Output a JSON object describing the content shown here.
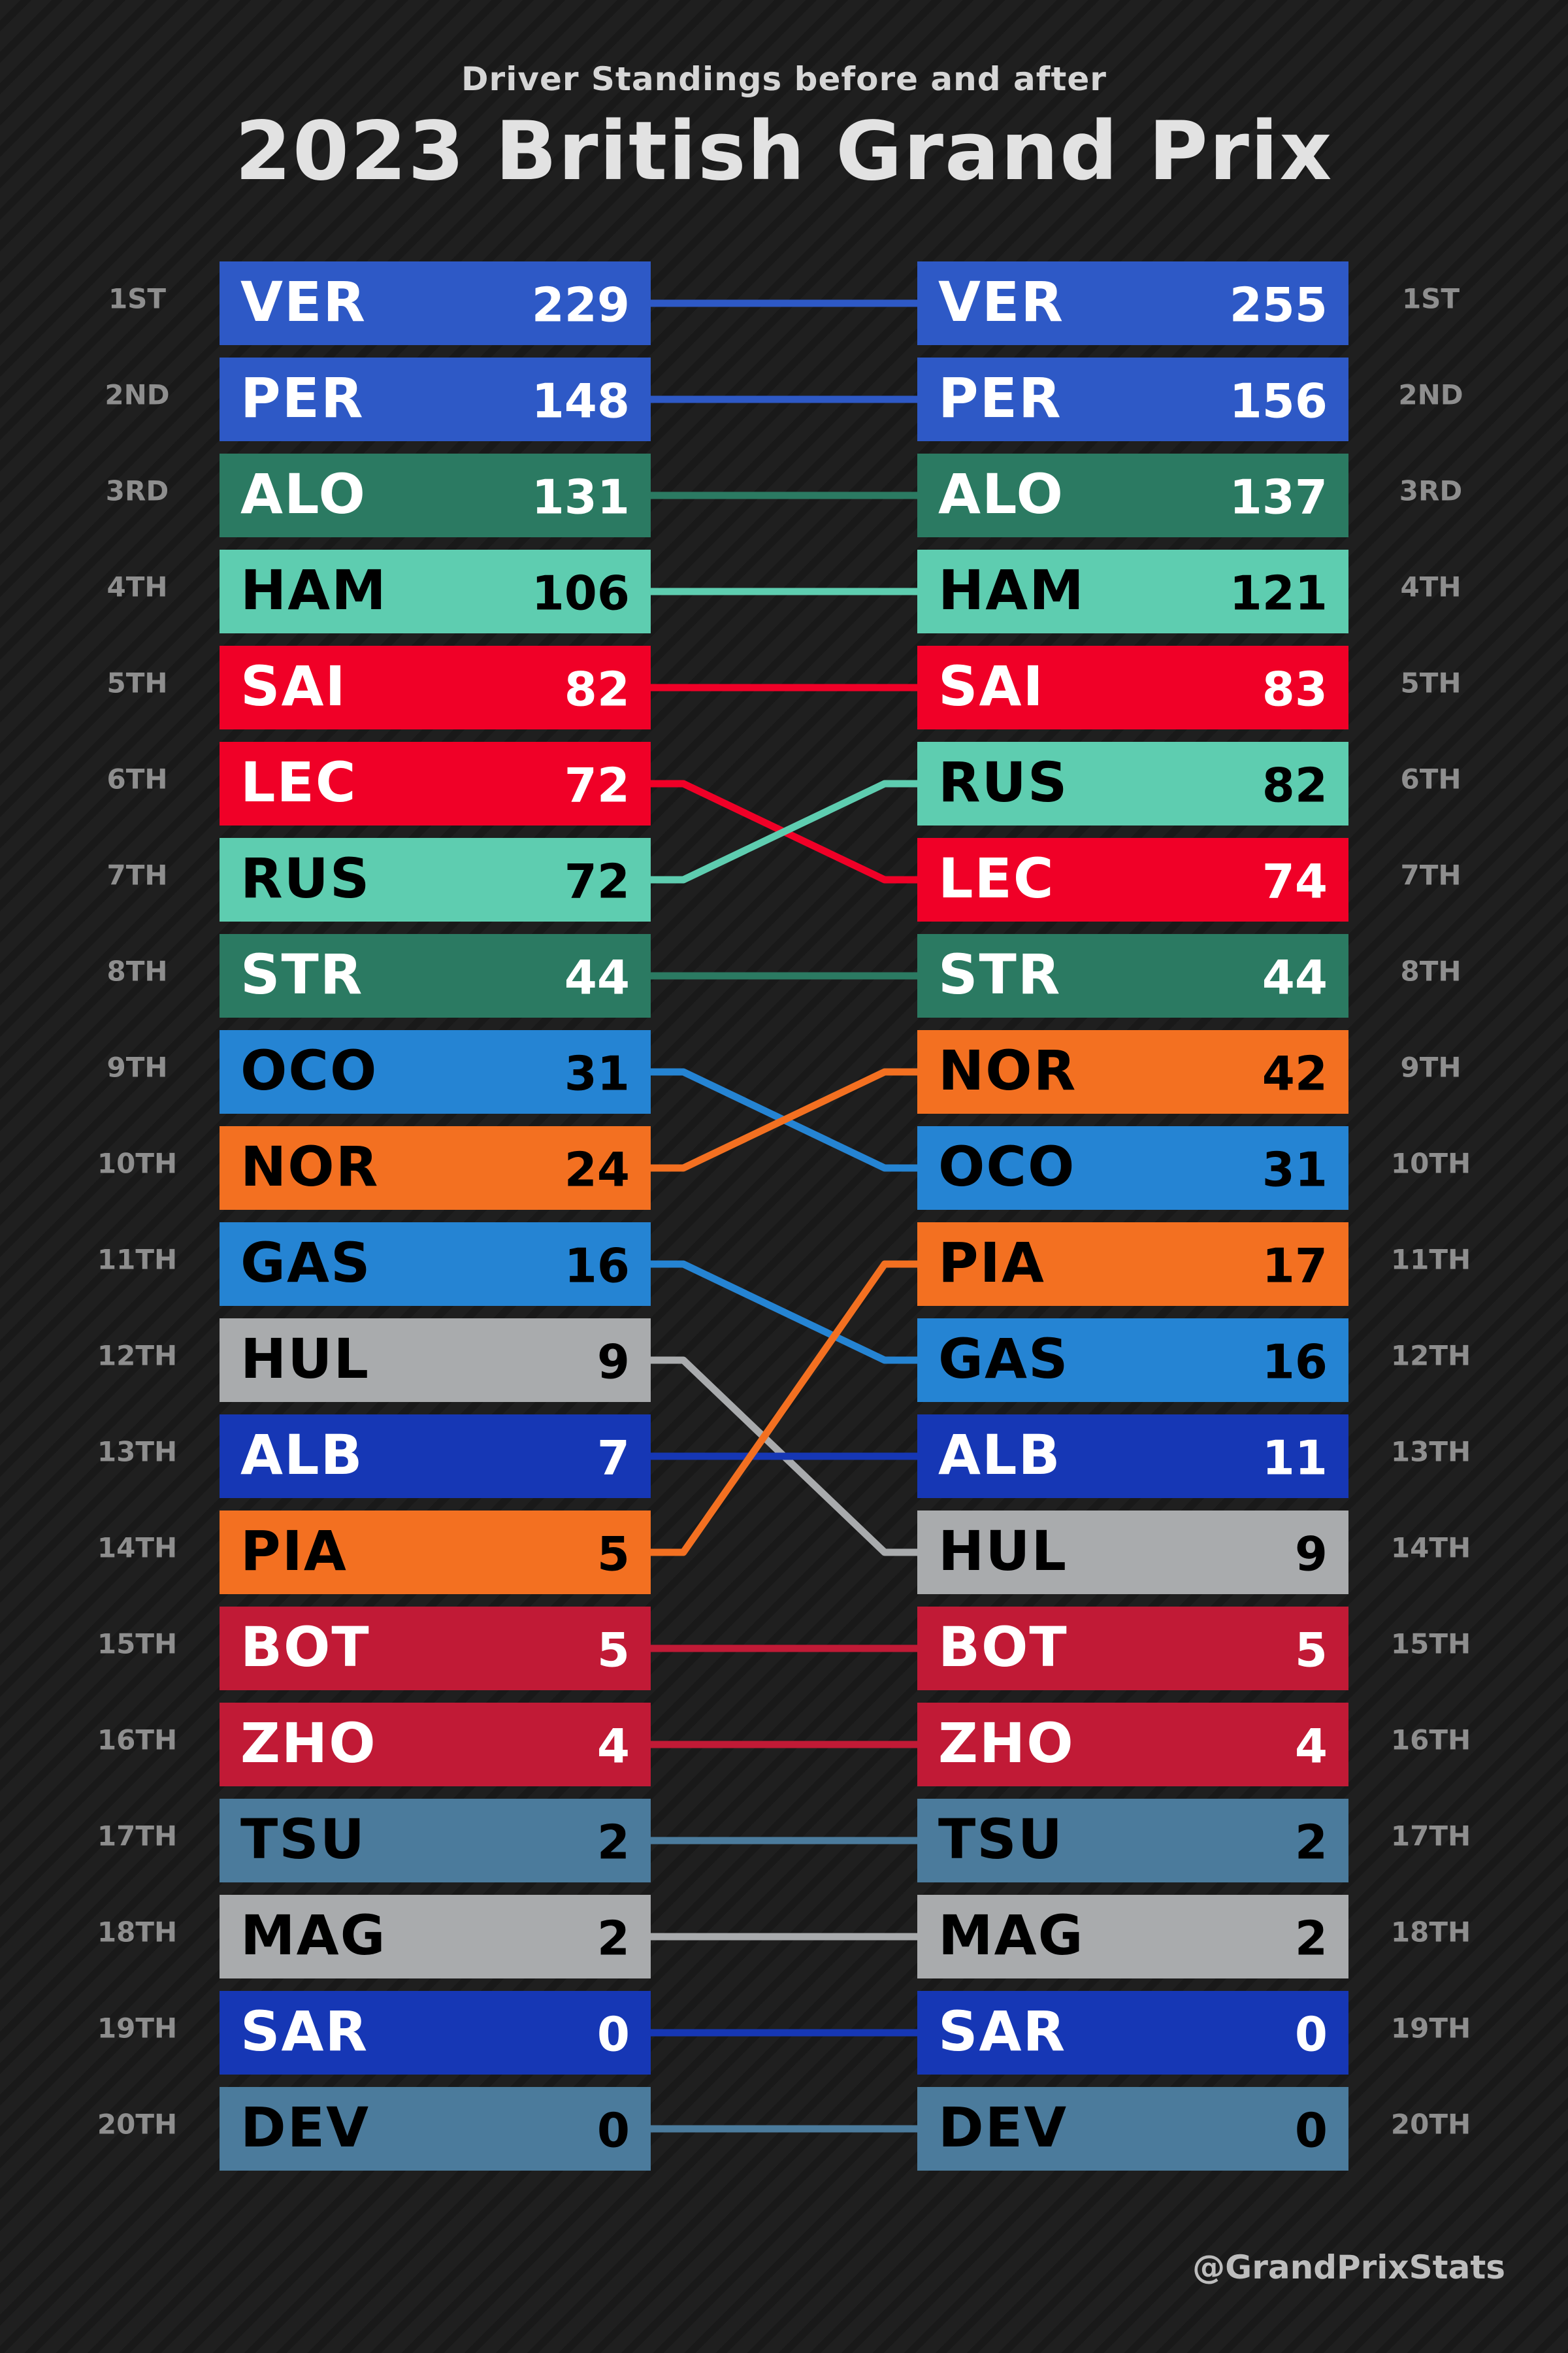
{
  "header": {
    "subtitle": "Driver Standings before and after",
    "title": "2023 British Grand Prix"
  },
  "footer": {
    "credit": "@GrandPrixStats"
  },
  "teams": {
    "redbull": {
      "bg": "#2e59c6",
      "fg": "#ffffff"
    },
    "aston": {
      "bg": "#2b7a62",
      "fg": "#ffffff"
    },
    "mercedes": {
      "bg": "#5ecdb0",
      "fg": "#000000"
    },
    "ferrari": {
      "bg": "#f00027",
      "fg": "#ffffff"
    },
    "alpine": {
      "bg": "#2584d3",
      "fg": "#000000"
    },
    "mclaren": {
      "bg": "#f37021",
      "fg": "#000000"
    },
    "haas": {
      "bg": "#a9abad",
      "fg": "#000000"
    },
    "williams": {
      "bg": "#1637b5",
      "fg": "#ffffff"
    },
    "alfa": {
      "bg": "#c11a36",
      "fg": "#ffffff"
    },
    "alphatauri": {
      "bg": "#4b7b9c",
      "fg": "#000000"
    }
  },
  "chart_data": {
    "type": "slope",
    "title": "2023 British Grand Prix",
    "subtitle": "Driver Standings before and after",
    "positions": [
      "1ST",
      "2ND",
      "3RD",
      "4TH",
      "5TH",
      "6TH",
      "7TH",
      "8TH",
      "9TH",
      "10TH",
      "11TH",
      "12TH",
      "13TH",
      "14TH",
      "15TH",
      "16TH",
      "17TH",
      "18TH",
      "19TH",
      "20TH"
    ],
    "drivers": [
      {
        "code": "VER",
        "team": "redbull",
        "before_rank": 1,
        "before_points": 229,
        "after_rank": 1,
        "after_points": 255
      },
      {
        "code": "PER",
        "team": "redbull",
        "before_rank": 2,
        "before_points": 148,
        "after_rank": 2,
        "after_points": 156
      },
      {
        "code": "ALO",
        "team": "aston",
        "before_rank": 3,
        "before_points": 131,
        "after_rank": 3,
        "after_points": 137
      },
      {
        "code": "HAM",
        "team": "mercedes",
        "before_rank": 4,
        "before_points": 106,
        "after_rank": 4,
        "after_points": 121
      },
      {
        "code": "SAI",
        "team": "ferrari",
        "before_rank": 5,
        "before_points": 82,
        "after_rank": 5,
        "after_points": 83
      },
      {
        "code": "LEC",
        "team": "ferrari",
        "before_rank": 6,
        "before_points": 72,
        "after_rank": 7,
        "after_points": 74
      },
      {
        "code": "RUS",
        "team": "mercedes",
        "before_rank": 7,
        "before_points": 72,
        "after_rank": 6,
        "after_points": 82
      },
      {
        "code": "STR",
        "team": "aston",
        "before_rank": 8,
        "before_points": 44,
        "after_rank": 8,
        "after_points": 44
      },
      {
        "code": "OCO",
        "team": "alpine",
        "before_rank": 9,
        "before_points": 31,
        "after_rank": 10,
        "after_points": 31
      },
      {
        "code": "NOR",
        "team": "mclaren",
        "before_rank": 10,
        "before_points": 24,
        "after_rank": 9,
        "after_points": 42
      },
      {
        "code": "GAS",
        "team": "alpine",
        "before_rank": 11,
        "before_points": 16,
        "after_rank": 12,
        "after_points": 16
      },
      {
        "code": "HUL",
        "team": "haas",
        "before_rank": 12,
        "before_points": 9,
        "after_rank": 14,
        "after_points": 9
      },
      {
        "code": "ALB",
        "team": "williams",
        "before_rank": 13,
        "before_points": 7,
        "after_rank": 13,
        "after_points": 11
      },
      {
        "code": "PIA",
        "team": "mclaren",
        "before_rank": 14,
        "before_points": 5,
        "after_rank": 11,
        "after_points": 17
      },
      {
        "code": "BOT",
        "team": "alfa",
        "before_rank": 15,
        "before_points": 5,
        "after_rank": 15,
        "after_points": 5
      },
      {
        "code": "ZHO",
        "team": "alfa",
        "before_rank": 16,
        "before_points": 4,
        "after_rank": 16,
        "after_points": 4
      },
      {
        "code": "TSU",
        "team": "alphatauri",
        "before_rank": 17,
        "before_points": 2,
        "after_rank": 17,
        "after_points": 2
      },
      {
        "code": "MAG",
        "team": "haas",
        "before_rank": 18,
        "before_points": 2,
        "after_rank": 18,
        "after_points": 2
      },
      {
        "code": "SAR",
        "team": "williams",
        "before_rank": 19,
        "before_points": 0,
        "after_rank": 19,
        "after_points": 0
      },
      {
        "code": "DEV",
        "team": "alphatauri",
        "before_rank": 20,
        "before_points": 0,
        "after_rank": 20,
        "after_points": 0
      }
    ]
  }
}
